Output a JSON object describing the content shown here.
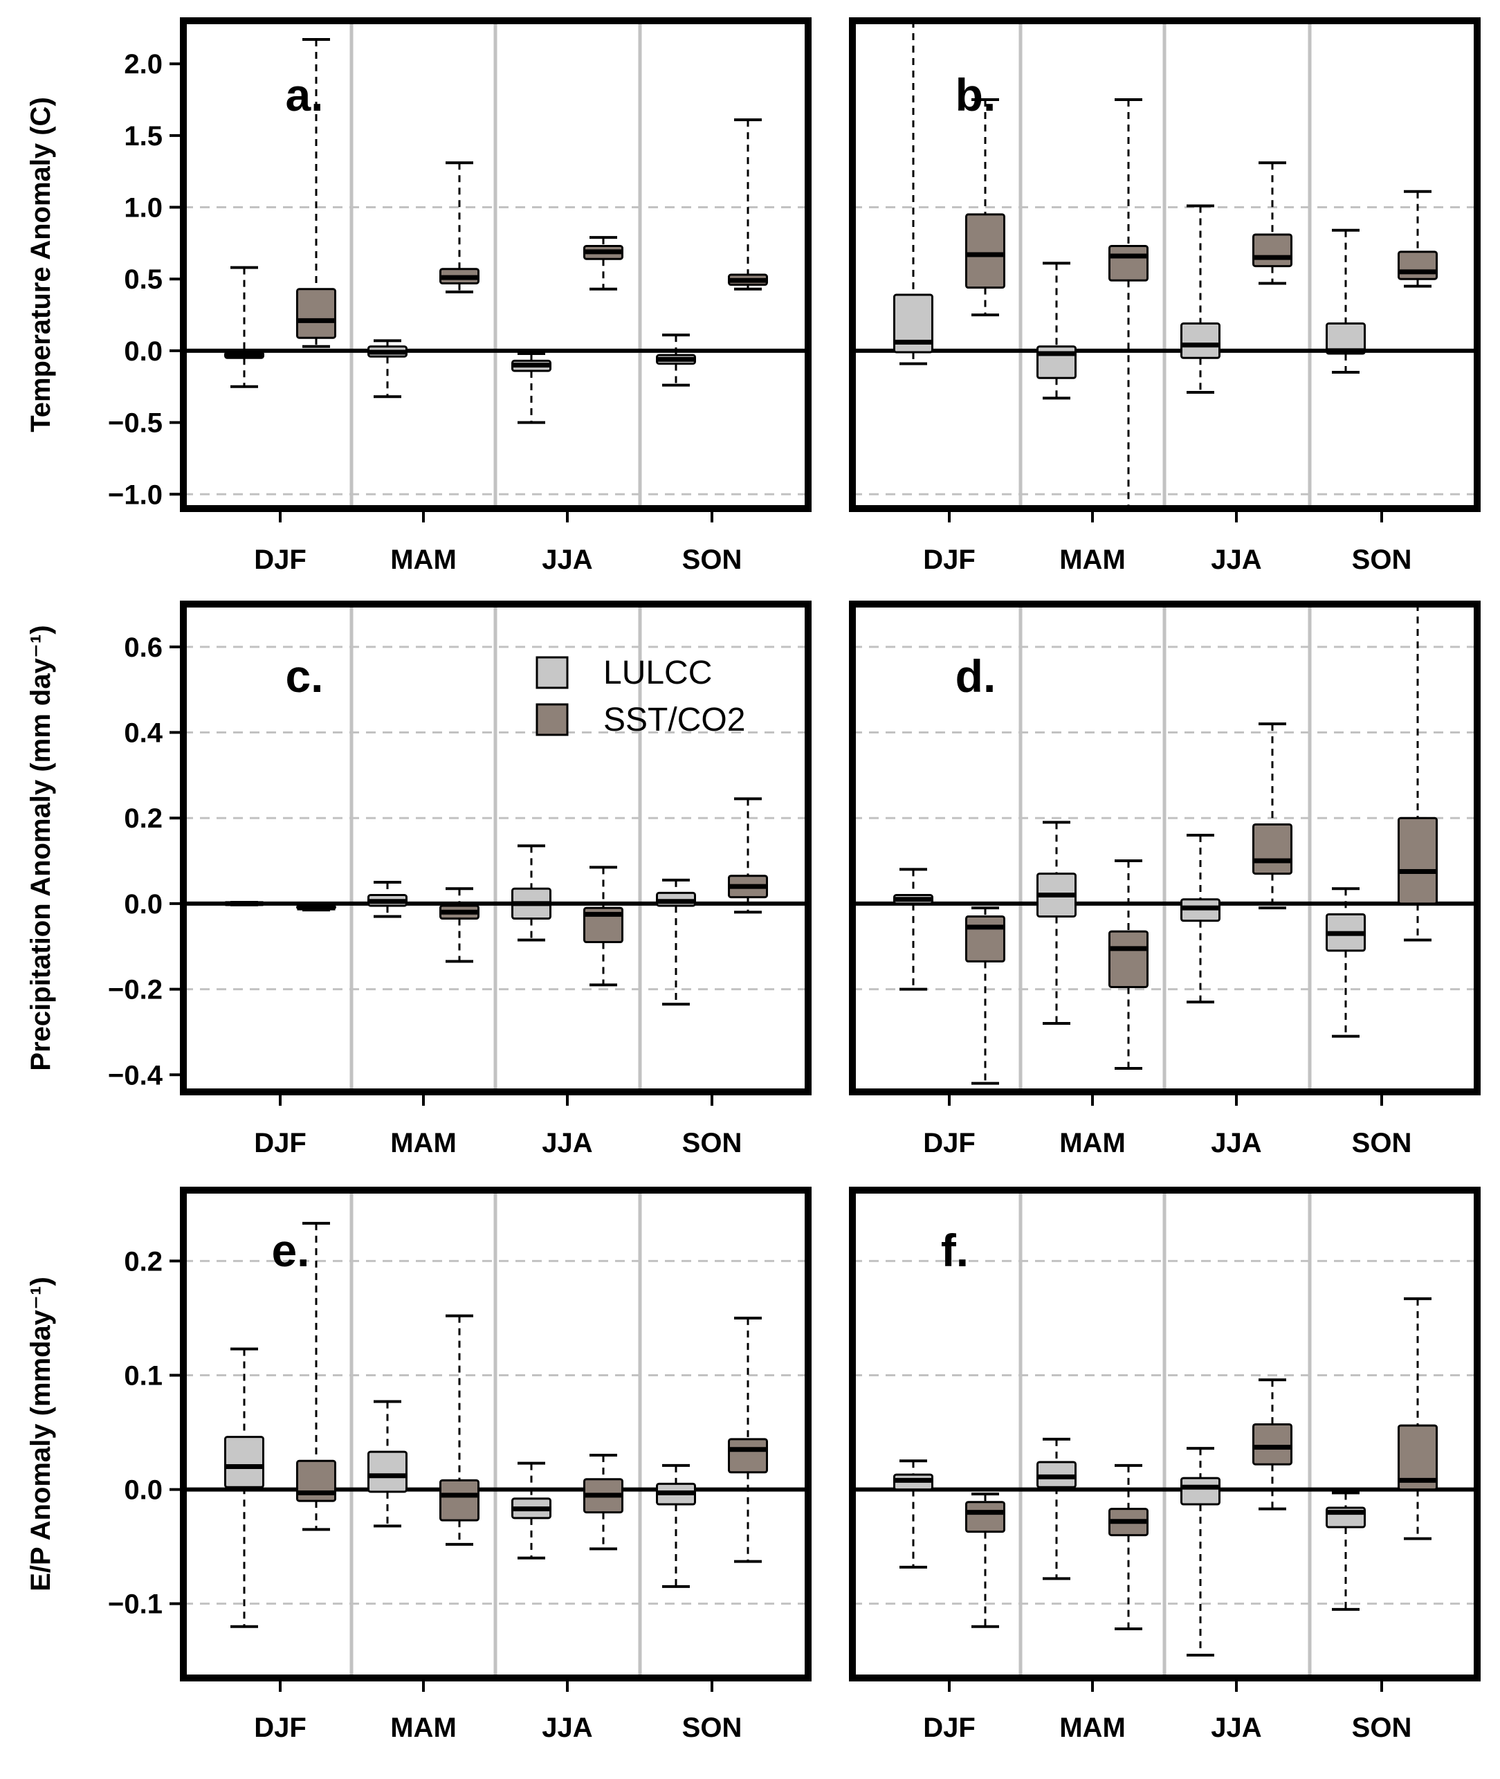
{
  "chart_data": [
    {
      "type": "box",
      "panel_label": "a.",
      "ylabel": "Temperature Anomaly (C)",
      "ylim": [
        -1.1,
        2.3
      ],
      "yticks": [
        2.0,
        1.5,
        1.0,
        0.5,
        0.0,
        -0.5,
        -1.0
      ],
      "ytick_labels": [
        "2.0",
        "1.5",
        "1.0",
        "0.5",
        "0.0",
        "−0.5",
        "−1.0"
      ],
      "grid_dashed": [
        1.0,
        -1.0
      ],
      "categories": [
        "DJF",
        "MAM",
        "JJA",
        "SON"
      ],
      "series": [
        {
          "name": "LULCC",
          "boxes": [
            {
              "min": -0.25,
              "q1": -0.05,
              "median": -0.03,
              "q3": -0.01,
              "max": 0.58
            },
            {
              "min": -0.32,
              "q1": -0.04,
              "median": -0.01,
              "q3": 0.03,
              "max": 0.07
            },
            {
              "min": -0.5,
              "q1": -0.14,
              "median": -0.1,
              "q3": -0.07,
              "max": -0.02
            },
            {
              "min": -0.24,
              "q1": -0.09,
              "median": -0.06,
              "q3": -0.03,
              "max": 0.11
            }
          ]
        },
        {
          "name": "SST/CO2",
          "boxes": [
            {
              "min": 0.03,
              "q1": 0.09,
              "median": 0.21,
              "q3": 0.43,
              "max": 2.17
            },
            {
              "min": 0.41,
              "q1": 0.47,
              "median": 0.51,
              "q3": 0.57,
              "max": 1.31
            },
            {
              "min": 0.43,
              "q1": 0.64,
              "median": 0.69,
              "q3": 0.73,
              "max": 0.79
            },
            {
              "min": 0.43,
              "q1": 0.46,
              "median": 0.49,
              "q3": 0.53,
              "max": 1.61
            }
          ]
        }
      ]
    },
    {
      "type": "box",
      "panel_label": "b.",
      "ylabel": "",
      "ylim": [
        -1.1,
        2.3
      ],
      "yticks": [],
      "ytick_labels": [],
      "grid_dashed": [
        1.0,
        -1.0
      ],
      "categories": [
        "DJF",
        "MAM",
        "JJA",
        "SON"
      ],
      "series": [
        {
          "name": "LULCC",
          "boxes": [
            {
              "min": -0.09,
              "q1": -0.01,
              "median": 0.06,
              "q3": 0.39,
              "max": 2.3
            },
            {
              "min": -0.33,
              "q1": -0.19,
              "median": -0.02,
              "q3": 0.03,
              "max": 0.61
            },
            {
              "min": -0.29,
              "q1": -0.05,
              "median": 0.04,
              "q3": 0.19,
              "max": 1.01
            },
            {
              "min": -0.15,
              "q1": -0.02,
              "median": 0.0,
              "q3": 0.19,
              "max": 0.84
            }
          ]
        },
        {
          "name": "SST/CO2",
          "boxes": [
            {
              "min": 0.25,
              "q1": 0.44,
              "median": 0.67,
              "q3": 0.95,
              "max": 1.75
            },
            {
              "min": -1.1,
              "q1": 0.49,
              "median": 0.66,
              "q3": 0.73,
              "max": 1.75
            },
            {
              "min": 0.47,
              "q1": 0.59,
              "median": 0.65,
              "q3": 0.81,
              "max": 1.31
            },
            {
              "min": 0.45,
              "q1": 0.5,
              "median": 0.55,
              "q3": 0.69,
              "max": 1.11
            }
          ]
        }
      ]
    },
    {
      "type": "box",
      "panel_label": "c.",
      "ylabel": "Precipitation  Anomaly  (mm day⁻¹)",
      "ylim": [
        -0.44,
        0.7
      ],
      "yticks": [
        0.6,
        0.4,
        0.2,
        0.0,
        -0.2,
        -0.4
      ],
      "ytick_labels": [
        "0.6",
        "0.4",
        "0.2",
        "0.0",
        "−0.2",
        "−0.4"
      ],
      "grid_dashed": [
        0.6,
        0.4,
        0.2,
        -0.2
      ],
      "categories": [
        "DJF",
        "MAM",
        "JJA",
        "SON"
      ],
      "legend": {
        "position": "top-center",
        "entries": [
          "LULCC",
          "SST/CO2"
        ]
      },
      "series": [
        {
          "name": "LULCC",
          "boxes": [
            {
              "min": -0.003,
              "q1": -0.002,
              "median": 0.0,
              "q3": 0.002,
              "max": 0.003
            },
            {
              "min": -0.03,
              "q1": -0.005,
              "median": 0.005,
              "q3": 0.02,
              "max": 0.05
            },
            {
              "min": -0.085,
              "q1": -0.035,
              "median": 0.0,
              "q3": 0.035,
              "max": 0.135
            },
            {
              "min": -0.235,
              "q1": -0.005,
              "median": 0.005,
              "q3": 0.025,
              "max": 0.055
            }
          ]
        },
        {
          "name": "SST/CO2",
          "boxes": [
            {
              "min": -0.015,
              "q1": -0.012,
              "median": -0.01,
              "q3": -0.005,
              "max": -0.003
            },
            {
              "min": -0.135,
              "q1": -0.035,
              "median": -0.02,
              "q3": -0.005,
              "max": 0.035
            },
            {
              "min": -0.19,
              "q1": -0.09,
              "median": -0.025,
              "q3": -0.01,
              "max": 0.085
            },
            {
              "min": -0.02,
              "q1": 0.015,
              "median": 0.04,
              "q3": 0.065,
              "max": 0.245
            }
          ]
        }
      ]
    },
    {
      "type": "box",
      "panel_label": "d.",
      "ylabel": "",
      "ylim": [
        -0.44,
        0.7
      ],
      "yticks": [],
      "ytick_labels": [],
      "grid_dashed": [
        0.6,
        0.4,
        0.2,
        -0.2
      ],
      "categories": [
        "DJF",
        "MAM",
        "JJA",
        "SON"
      ],
      "series": [
        {
          "name": "LULCC",
          "boxes": [
            {
              "min": -0.2,
              "q1": 0.0,
              "median": 0.01,
              "q3": 0.02,
              "max": 0.08
            },
            {
              "min": -0.28,
              "q1": -0.03,
              "median": 0.02,
              "q3": 0.07,
              "max": 0.19
            },
            {
              "min": -0.23,
              "q1": -0.04,
              "median": -0.01,
              "q3": 0.01,
              "max": 0.16
            },
            {
              "min": -0.31,
              "q1": -0.11,
              "median": -0.07,
              "q3": -0.025,
              "max": 0.035
            }
          ]
        },
        {
          "name": "SST/CO2",
          "boxes": [
            {
              "min": -0.42,
              "q1": -0.135,
              "median": -0.055,
              "q3": -0.03,
              "max": -0.01
            },
            {
              "min": -0.385,
              "q1": -0.195,
              "median": -0.105,
              "q3": -0.065,
              "max": 0.1
            },
            {
              "min": -0.01,
              "q1": 0.07,
              "median": 0.1,
              "q3": 0.185,
              "max": 0.42
            },
            {
              "min": -0.085,
              "q1": 0.0,
              "median": 0.075,
              "q3": 0.2,
              "max": 0.7
            }
          ]
        }
      ]
    },
    {
      "type": "box",
      "panel_label": "e.",
      "ylabel": "E/P Anomaly  (mmday⁻¹)",
      "ylim": [
        -0.165,
        0.262
      ],
      "yticks": [
        0.2,
        0.1,
        0.0,
        -0.1
      ],
      "ytick_labels": [
        "0.2",
        "0.1",
        "0.0",
        "−0.1"
      ],
      "grid_dashed": [
        0.2,
        0.1,
        -0.1
      ],
      "categories": [
        "DJF",
        "MAM",
        "JJA",
        "SON"
      ],
      "series": [
        {
          "name": "LULCC",
          "boxes": [
            {
              "min": -0.12,
              "q1": 0.002,
              "median": 0.02,
              "q3": 0.046,
              "max": 0.123
            },
            {
              "min": -0.032,
              "q1": -0.002,
              "median": 0.012,
              "q3": 0.033,
              "max": 0.077
            },
            {
              "min": -0.06,
              "q1": -0.025,
              "median": -0.017,
              "q3": -0.008,
              "max": 0.023
            },
            {
              "min": -0.085,
              "q1": -0.013,
              "median": -0.003,
              "q3": 0.005,
              "max": 0.021
            }
          ]
        },
        {
          "name": "SST/CO2",
          "boxes": [
            {
              "min": -0.035,
              "q1": -0.01,
              "median": -0.003,
              "q3": 0.025,
              "max": 0.233
            },
            {
              "min": -0.048,
              "q1": -0.027,
              "median": -0.005,
              "q3": 0.008,
              "max": 0.152
            },
            {
              "min": -0.052,
              "q1": -0.02,
              "median": -0.005,
              "q3": 0.009,
              "max": 0.03
            },
            {
              "min": -0.063,
              "q1": 0.015,
              "median": 0.035,
              "q3": 0.044,
              "max": 0.15
            }
          ]
        }
      ]
    },
    {
      "type": "box",
      "panel_label": "f.",
      "ylabel": "",
      "ylim": [
        -0.165,
        0.262
      ],
      "yticks": [],
      "ytick_labels": [],
      "grid_dashed": [
        0.2,
        0.1,
        -0.1
      ],
      "categories": [
        "DJF",
        "MAM",
        "JJA",
        "SON"
      ],
      "series": [
        {
          "name": "LULCC",
          "boxes": [
            {
              "min": -0.068,
              "q1": 0.0,
              "median": 0.008,
              "q3": 0.013,
              "max": 0.025
            },
            {
              "min": -0.078,
              "q1": 0.002,
              "median": 0.011,
              "q3": 0.024,
              "max": 0.044
            },
            {
              "min": -0.145,
              "q1": -0.013,
              "median": 0.002,
              "q3": 0.01,
              "max": 0.036
            },
            {
              "min": -0.105,
              "q1": -0.033,
              "median": -0.02,
              "q3": -0.016,
              "max": -0.003
            }
          ]
        },
        {
          "name": "SST/CO2",
          "boxes": [
            {
              "min": -0.12,
              "q1": -0.037,
              "median": -0.02,
              "q3": -0.011,
              "max": -0.004
            },
            {
              "min": -0.122,
              "q1": -0.04,
              "median": -0.028,
              "q3": -0.017,
              "max": 0.021
            },
            {
              "min": -0.017,
              "q1": 0.022,
              "median": 0.037,
              "q3": 0.057,
              "max": 0.096
            },
            {
              "min": -0.043,
              "q1": 0.0,
              "median": 0.008,
              "q3": 0.056,
              "max": 0.167
            }
          ]
        }
      ]
    }
  ],
  "colors": {
    "lulcc": "#c7c7c7",
    "sst_co2": "#8e8178",
    "grid": "#c2c2c2",
    "frame": "#000000"
  }
}
